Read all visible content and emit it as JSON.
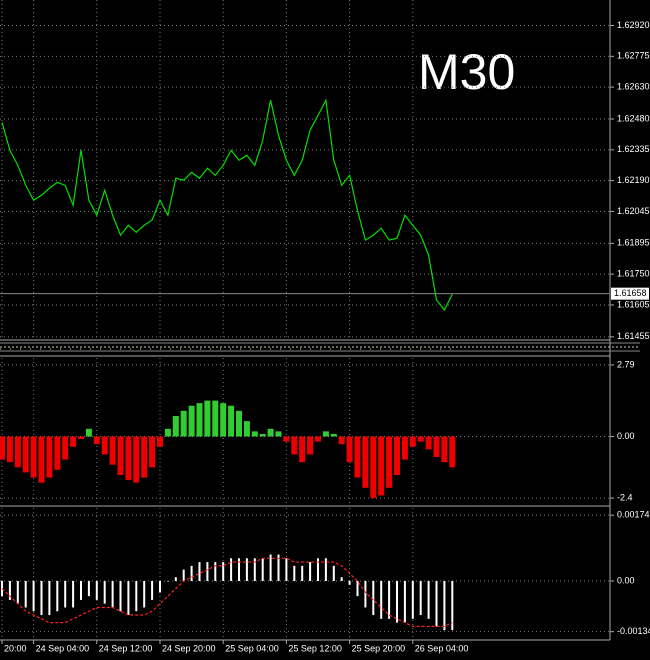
{
  "chart_data": [
    {
      "type": "line",
      "annotation": "M30",
      "color": "#00e000",
      "values": [
        1.62464,
        1.62333,
        1.62262,
        1.62168,
        1.62098,
        1.62121,
        1.62154,
        1.62182,
        1.62168,
        1.62074,
        1.62333,
        1.62098,
        1.62027,
        1.62145,
        1.62027,
        1.61933,
        1.6198,
        1.61947,
        1.6198,
        1.62004,
        1.62098,
        1.62027,
        1.62201,
        1.62192,
        1.62229,
        1.62201,
        1.62248,
        1.62215,
        1.62262,
        1.62333,
        1.62286,
        1.62309,
        1.62262,
        1.6238,
        1.62568,
        1.62403,
        1.62286,
        1.62215,
        1.62286,
        1.62427,
        1.62497,
        1.62568,
        1.62286,
        1.62168,
        1.62215,
        1.6205,
        1.6191,
        1.61933,
        1.61966,
        1.6191,
        1.61919,
        1.62027,
        1.6198,
        1.61933,
        1.61839,
        1.61628,
        1.61581,
        1.61656
      ],
      "ylim": [
        1.6144,
        1.6304
      ],
      "yticks": [
        {
          "value": 1.6292,
          "label": "1.62920"
        },
        {
          "value": 1.62775,
          "label": "1.62775"
        },
        {
          "value": 1.6263,
          "label": "1.62630"
        },
        {
          "value": 1.6248,
          "label": "1.62480"
        },
        {
          "value": 1.62335,
          "label": "1.62335"
        },
        {
          "value": 1.6219,
          "label": "1.62190"
        },
        {
          "value": 1.62045,
          "label": "1.62045"
        },
        {
          "value": 1.61895,
          "label": "1.61895"
        },
        {
          "value": 1.6175,
          "label": "1.61750"
        },
        {
          "value": 1.61605,
          "label": "1.61605"
        },
        {
          "value": 1.61455,
          "label": "1.61455"
        }
      ],
      "price_line": {
        "value": 1.61658,
        "label": "1.61658"
      },
      "grid": true
    },
    {
      "type": "bar",
      "positive_color": "#33cc33",
      "negative_color": "#ee0000",
      "values": [
        -0.9,
        -1.0,
        -1.2,
        -1.4,
        -1.6,
        -1.8,
        -1.6,
        -1.3,
        -0.9,
        -0.4,
        -0.1,
        0.3,
        -0.3,
        -0.7,
        -1.1,
        -1.5,
        -1.7,
        -1.8,
        -1.6,
        -1.2,
        -0.4,
        0.3,
        0.8,
        1.0,
        1.2,
        1.3,
        1.4,
        1.4,
        1.3,
        1.2,
        1.0,
        0.6,
        0.2,
        0.1,
        0.3,
        0.2,
        -0.2,
        -0.7,
        -1.0,
        -0.7,
        -0.2,
        0.2,
        0.1,
        -0.3,
        -1.0,
        -1.6,
        -2.0,
        -2.4,
        -2.3,
        -2.0,
        -1.5,
        -0.9,
        -0.4,
        -0.2,
        -0.5,
        -0.8,
        -1.0,
        -1.2
      ],
      "ylim": [
        -2.67,
        3.06
      ],
      "yticks": [
        2.79,
        {
          "value": 0,
          "label": "0.00"
        },
        -2.4
      ],
      "grid": true
    },
    {
      "type": "bar_line",
      "categories": [
        "20:00",
        null,
        null,
        null,
        "24 Sep 04:00",
        null,
        null,
        null,
        null,
        null,
        null,
        null,
        "24 Sep 12:00",
        null,
        null,
        null,
        null,
        null,
        null,
        null,
        "24 Sep 20:00",
        null,
        null,
        null,
        null,
        null,
        null,
        null,
        "25 Sep 04:00",
        null,
        null,
        null,
        null,
        null,
        null,
        null,
        "25 Sep 12:00",
        null,
        null,
        null,
        null,
        null,
        null,
        null,
        "25 Sep 20:00",
        null,
        null,
        null,
        null,
        null,
        null,
        null,
        "26 Sep 04:00",
        null,
        null,
        null,
        null,
        null
      ],
      "series": [
        {
          "color": "#ffffff",
          "style": "bar",
          "values": [
            -0.0004,
            -0.0005,
            -0.0006,
            -0.0007,
            -0.0008,
            -0.0009,
            -0.0009,
            -0.0008,
            -0.0007,
            -0.0007,
            -0.0005,
            -0.0004,
            -0.0005,
            -0.0006,
            -0.0007,
            -0.0008,
            -0.0009,
            -0.0008,
            -0.0007,
            -0.0005,
            -0.0003,
            0,
            0.0001,
            0.0003,
            0.0004,
            0.0005,
            0.0005,
            0.0005,
            0.0005,
            0.0006,
            0.0006,
            0.0006,
            0.0006,
            0.0006,
            0.0007,
            0.0007,
            0.0006,
            0.0004,
            0.0004,
            0.0005,
            0.0006,
            0.0006,
            0.0004,
            0.0001,
            -0.0001,
            -0.0004,
            -0.0007,
            -0.0009,
            -0.001,
            -0.001,
            -0.0011,
            -0.0011,
            -0.001,
            -0.0009,
            -0.001,
            -0.0012,
            -0.0013,
            -0.0013
          ]
        },
        {
          "color": "#ff2020",
          "style": "dashed",
          "values": [
            -0.0002,
            -0.0004,
            -0.0006,
            -0.0008,
            -0.0009,
            -0.001,
            -0.0011,
            -0.0011,
            -0.0011,
            -0.001,
            -0.0009,
            -0.0008,
            -0.0007,
            -0.0007,
            -0.0007,
            -0.0008,
            -0.0009,
            -0.0009,
            -0.0009,
            -0.0008,
            -0.0006,
            -0.0004,
            -0.0002,
            0,
            0.0001,
            0.0002,
            0.0003,
            0.0004,
            0.0004,
            0.0005,
            0.0005,
            0.0005,
            0.0005,
            0.0006,
            0.0006,
            0.0006,
            0.0006,
            0.0005,
            0.0005,
            0.0005,
            0.0005,
            0.0005,
            0.0005,
            0.0004,
            0.0002,
            0,
            -0.0003,
            -0.0005,
            -0.0007,
            -0.0009,
            -0.001,
            -0.0011,
            -0.0012,
            -0.0012,
            -0.0012,
            -0.0012,
            -0.0012,
            -0.0011
          ]
        }
      ],
      "ylim": [
        -0.00156,
        0.00193
      ],
      "yticks": [
        0.00174,
        {
          "value": 0,
          "label": "0.00"
        },
        -0.00134
      ],
      "grid": true
    }
  ]
}
